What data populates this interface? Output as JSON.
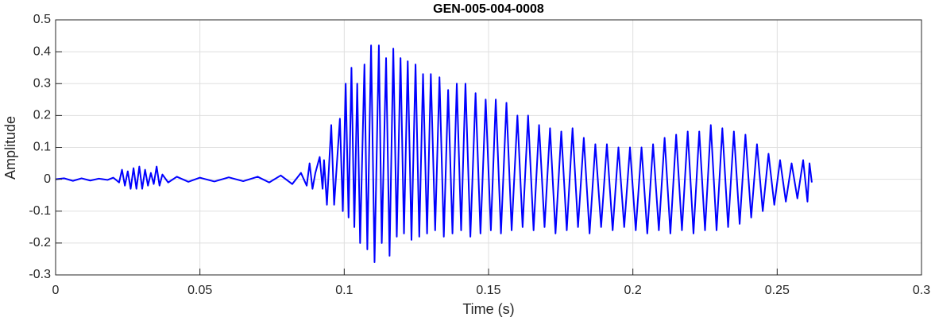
{
  "chart_data": {
    "type": "line",
    "title": "GEN-005-004-0008",
    "x_label": "Time (s)",
    "y_label": "Amplitude",
    "xlim": [
      0,
      0.3
    ],
    "ylim": [
      -0.3,
      0.5
    ],
    "xticks": [
      0,
      0.05,
      0.1,
      0.15,
      0.2,
      0.25,
      0.3
    ],
    "yticks": [
      -0.3,
      -0.2,
      -0.1,
      0,
      0.1,
      0.2,
      0.3,
      0.4,
      0.5
    ],
    "grid": true,
    "series": [
      {
        "color": "#0000ff",
        "x": [
          0,
          0.003,
          0.006,
          0.009,
          0.012,
          0.015,
          0.018,
          0.02,
          0.022,
          0.023,
          0.024,
          0.025,
          0.026,
          0.027,
          0.028,
          0.029,
          0.03,
          0.031,
          0.032,
          0.033,
          0.034,
          0.035,
          0.036,
          0.037,
          0.039,
          0.042,
          0.046,
          0.05,
          0.055,
          0.06,
          0.065,
          0.07,
          0.074,
          0.078,
          0.082,
          0.085,
          0.087,
          0.088,
          0.089,
          0.09,
          0.0915,
          0.0925,
          0.093,
          0.094,
          0.0955,
          0.0965,
          0.0985,
          0.0995,
          0.1005,
          0.1015,
          0.1025,
          0.1035,
          0.1045,
          0.1055,
          0.107,
          0.108,
          0.1093,
          0.1105,
          0.112,
          0.113,
          0.1145,
          0.1157,
          0.117,
          0.1182,
          0.1195,
          0.1207,
          0.122,
          0.1233,
          0.1247,
          0.126,
          0.1273,
          0.1287,
          0.13,
          0.1315,
          0.133,
          0.1345,
          0.136,
          0.1375,
          0.139,
          0.1405,
          0.142,
          0.1437,
          0.1455,
          0.1472,
          0.149,
          0.1508,
          0.1525,
          0.1543,
          0.1562,
          0.158,
          0.16,
          0.1618,
          0.1637,
          0.1656,
          0.1675,
          0.1694,
          0.1713,
          0.1732,
          0.1752,
          0.1771,
          0.1791,
          0.181,
          0.183,
          0.185,
          0.187,
          0.189,
          0.191,
          0.193,
          0.195,
          0.197,
          0.199,
          0.201,
          0.203,
          0.205,
          0.207,
          0.209,
          0.211,
          0.213,
          0.215,
          0.217,
          0.219,
          0.221,
          0.223,
          0.225,
          0.227,
          0.229,
          0.231,
          0.233,
          0.235,
          0.237,
          0.239,
          0.241,
          0.243,
          0.245,
          0.247,
          0.249,
          0.251,
          0.253,
          0.255,
          0.257,
          0.259,
          0.2605,
          0.2612,
          0.262
        ],
        "values": [
          0,
          0.003,
          -0.005,
          0.003,
          -0.004,
          0.002,
          -0.002,
          0.005,
          -0.01,
          0.03,
          -0.02,
          0.025,
          -0.03,
          0.035,
          -0.03,
          0.04,
          -0.03,
          0.03,
          -0.02,
          0.02,
          -0.015,
          0.04,
          -0.02,
          0.015,
          -0.01,
          0.008,
          -0.008,
          0.005,
          -0.007,
          0.006,
          -0.006,
          0.008,
          -0.01,
          0.012,
          -0.015,
          0.02,
          -0.02,
          0.05,
          -0.03,
          0.02,
          0.07,
          -0.03,
          0.06,
          -0.08,
          0.17,
          -0.08,
          0.19,
          -0.1,
          0.3,
          -0.12,
          0.35,
          -0.15,
          0.3,
          -0.2,
          0.36,
          -0.22,
          0.42,
          -0.26,
          0.42,
          -0.2,
          0.38,
          -0.24,
          0.41,
          -0.18,
          0.38,
          -0.17,
          0.37,
          -0.19,
          0.36,
          -0.18,
          0.33,
          -0.17,
          0.33,
          -0.16,
          0.32,
          -0.18,
          0.28,
          -0.17,
          0.3,
          -0.16,
          0.3,
          -0.18,
          0.27,
          -0.17,
          0.25,
          -0.16,
          0.25,
          -0.17,
          0.24,
          -0.16,
          0.2,
          -0.15,
          0.2,
          -0.16,
          0.17,
          -0.15,
          0.16,
          -0.17,
          0.15,
          -0.16,
          0.16,
          -0.15,
          0.13,
          -0.17,
          0.11,
          -0.15,
          0.11,
          -0.16,
          0.1,
          -0.15,
          0.1,
          -0.16,
          0.1,
          -0.17,
          0.11,
          -0.16,
          0.13,
          -0.17,
          0.14,
          -0.16,
          0.15,
          -0.17,
          0.15,
          -0.16,
          0.17,
          -0.16,
          0.16,
          -0.15,
          0.15,
          -0.14,
          0.14,
          -0.12,
          0.11,
          -0.1,
          0.08,
          -0.08,
          0.06,
          -0.07,
          0.05,
          -0.06,
          0.06,
          -0.07,
          0.05,
          -0.01
        ]
      }
    ]
  }
}
